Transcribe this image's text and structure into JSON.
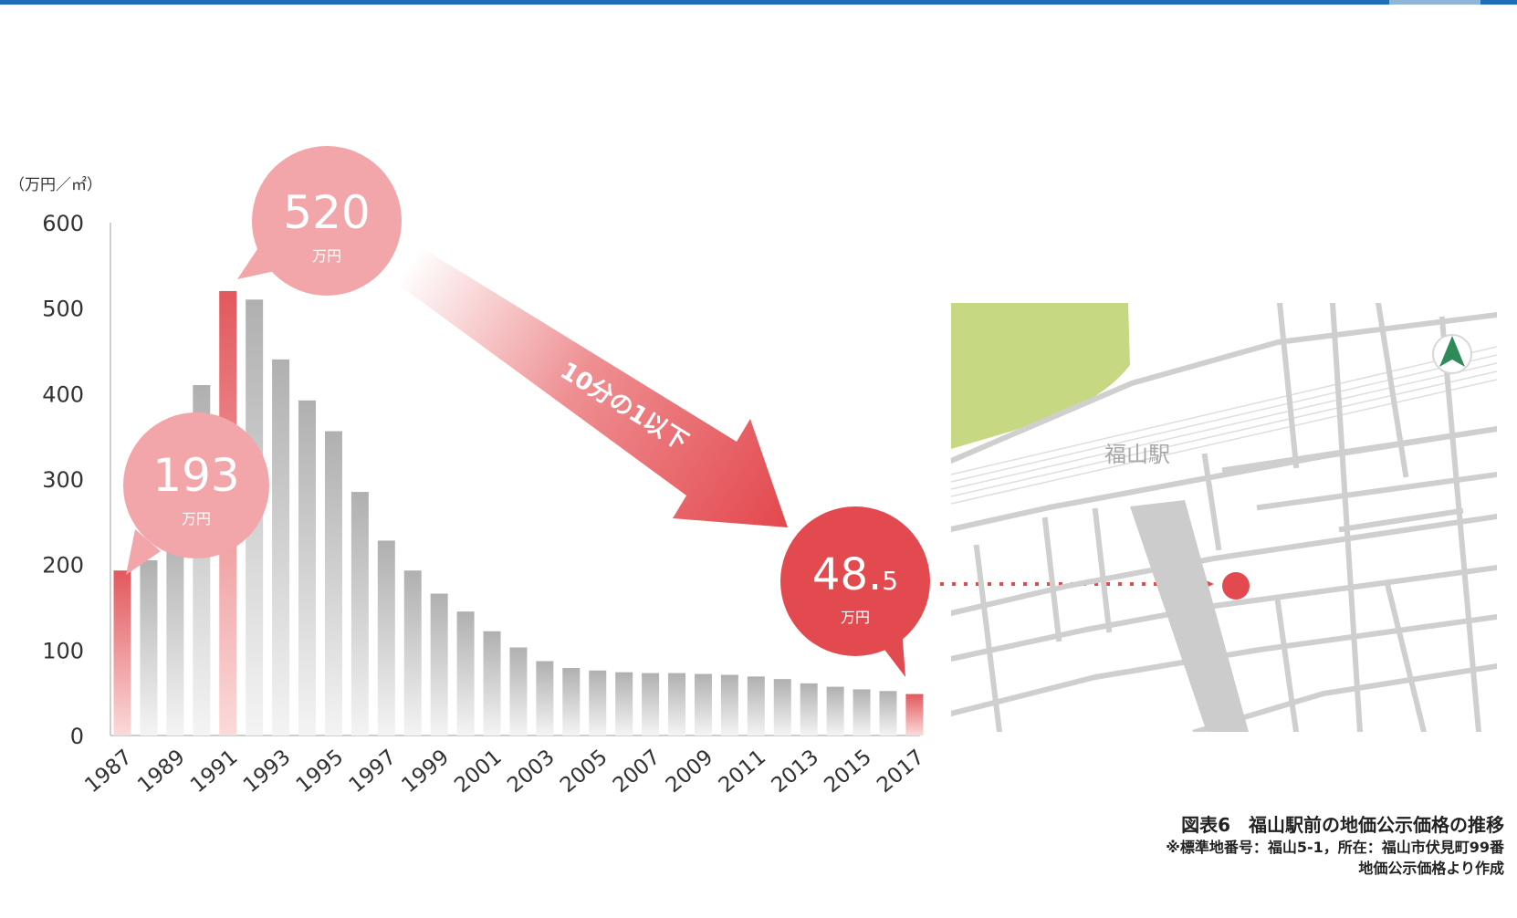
{
  "chart_data": {
    "type": "bar",
    "unit_label": "（万円／㎡）",
    "ylim": [
      0,
      600
    ],
    "yticks": [
      0,
      100,
      200,
      300,
      400,
      500,
      600
    ],
    "x_tick_labels": [
      "1987",
      "1989",
      "1991",
      "1993",
      "1995",
      "1997",
      "1999",
      "2001",
      "2003",
      "2005",
      "2007",
      "2009",
      "2011",
      "2013",
      "2015",
      "2017"
    ],
    "categories": [
      "1987",
      "1988",
      "1989",
      "1990",
      "1991",
      "1992",
      "1993",
      "1994",
      "1995",
      "1996",
      "1997",
      "1998",
      "1999",
      "2000",
      "2001",
      "2002",
      "2003",
      "2004",
      "2005",
      "2006",
      "2007",
      "2008",
      "2009",
      "2010",
      "2011",
      "2012",
      "2013",
      "2014",
      "2015",
      "2016",
      "2017"
    ],
    "values": [
      193,
      205,
      240,
      410,
      520,
      510,
      440,
      392,
      356,
      285,
      228,
      193,
      166,
      145,
      122,
      103,
      87,
      79,
      76,
      74,
      73,
      73,
      72,
      71,
      69,
      66,
      61,
      57,
      54,
      52,
      48.5
    ],
    "highlight": [
      "1987",
      "1991",
      "2017"
    ],
    "grid": false,
    "callouts": [
      {
        "name": "start",
        "value": "193",
        "unit": "万円"
      },
      {
        "name": "peak",
        "value": "520",
        "unit": "万円"
      },
      {
        "name": "current",
        "value_main": "48.",
        "value_small": "5",
        "unit": "万円"
      }
    ],
    "arrow_label": "10分の1以下",
    "colors": {
      "highlight": "#e05a5e",
      "bar": "#b3b3b3",
      "callout_light": "#f3a7aa",
      "callout_dark": "#e34a4f"
    }
  },
  "map": {
    "station_label": "福山駅",
    "north_icon": "north-arrow-icon",
    "colors": {
      "park": "#c6d982",
      "road": "#cfcfcf",
      "marker": "#e34a4f"
    }
  },
  "caption": {
    "title": "図表6　福山駅前の地価公示価格の推移",
    "note": "※標準地番号：福山5-1，所在：福山市伏見町99番",
    "source": "地価公示価格より作成"
  }
}
